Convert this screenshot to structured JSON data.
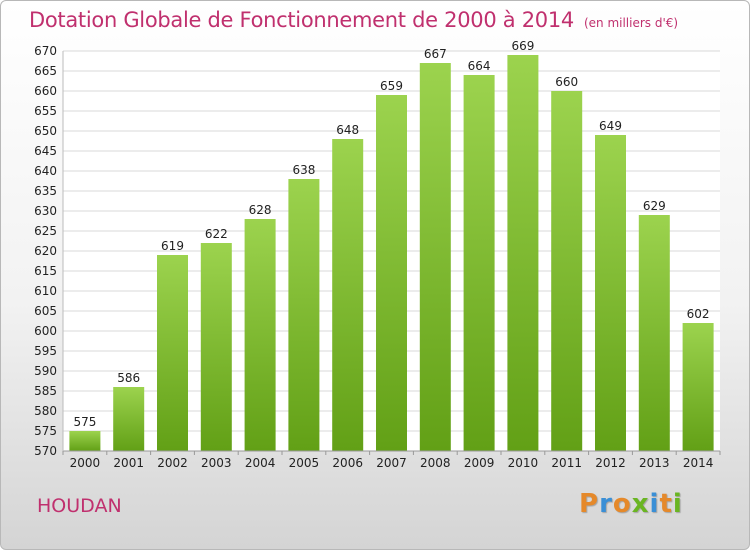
{
  "header": {
    "title": "Dotation Globale de Fonctionnement de 2000 à 2014",
    "unit": "(en milliers d'€)"
  },
  "footer": {
    "commune": "HOUDAN",
    "logo_letters": [
      "P",
      "r",
      "o",
      "x",
      "i",
      "t",
      "i"
    ],
    "logo_colors": [
      "#e5892a",
      "#3a8fd6",
      "#e5892a",
      "#6ab522",
      "#3a8fd6",
      "#e5892a",
      "#6ab522"
    ]
  },
  "chart_data": {
    "type": "bar",
    "title": "Dotation Globale de Fonctionnement de 2000 à 2014",
    "xlabel": "",
    "ylabel": "",
    "categories": [
      "2000",
      "2001",
      "2002",
      "2003",
      "2004",
      "2005",
      "2006",
      "2007",
      "2008",
      "2009",
      "2010",
      "2011",
      "2012",
      "2013",
      "2014"
    ],
    "values": [
      575,
      586,
      619,
      622,
      628,
      638,
      648,
      659,
      667,
      664,
      669,
      660,
      649,
      629,
      602
    ],
    "ylim": [
      570,
      670
    ],
    "yticks": [
      570,
      575,
      580,
      585,
      590,
      595,
      600,
      605,
      610,
      615,
      620,
      625,
      630,
      635,
      640,
      645,
      650,
      655,
      660,
      665,
      670
    ],
    "grid": true,
    "legend": "none",
    "bar_color_top": "#9cd34e",
    "bar_color_bottom": "#62a016"
  }
}
